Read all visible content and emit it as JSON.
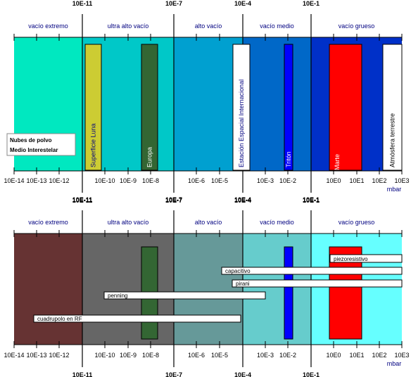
{
  "unit": "mbar",
  "top_pressure_labels": [
    "10E-11",
    "10E-7",
    "10E-4",
    "10E-1"
  ],
  "regions": [
    {
      "label": "vacío extremo"
    },
    {
      "label": "ultra alto vacío"
    },
    {
      "label": "alto vacío"
    },
    {
      "label": "vacío medio"
    },
    {
      "label": "vacío grueso"
    }
  ],
  "ticks": [
    "10E-14",
    "10E-13",
    "10E-12",
    "10E-10",
    "10E-9",
    "10E-8",
    "10E-6",
    "10E-5",
    "10E-3",
    "10E-2",
    "10E0",
    "10E1",
    "10E2",
    "10E3"
  ],
  "colors": {
    "top_regions": [
      "#00e8c0",
      "#00c8c8",
      "#00a0d0",
      "#0068c8",
      "#0030c8"
    ],
    "bottom_regions": [
      "#663333",
      "#666666",
      "#669999",
      "#66cccc",
      "#66ffff"
    ]
  },
  "environments": {
    "legend": [
      "Nubes de polvo",
      "Medio Interestelar"
    ],
    "bars": [
      {
        "label": "Superficie Luna",
        "color": "#cccc33"
      },
      {
        "label": "Europa",
        "color": "#336633"
      },
      {
        "label": "Estación Espacial Internacional",
        "color": "#ffffff"
      },
      {
        "label": "Tritón",
        "color": "#0000ff"
      },
      {
        "label": "Marte",
        "color": "#ff0000"
      },
      {
        "label": "Atmósfera terrestre",
        "color": "#ffffff"
      }
    ]
  },
  "gauges": {
    "ranges": [
      {
        "label": "piezoresistivo"
      },
      {
        "label": "capacitivo"
      },
      {
        "label": "pirani"
      },
      {
        "label": "penning"
      },
      {
        "label": "cuadrupolo en RF"
      }
    ]
  }
}
